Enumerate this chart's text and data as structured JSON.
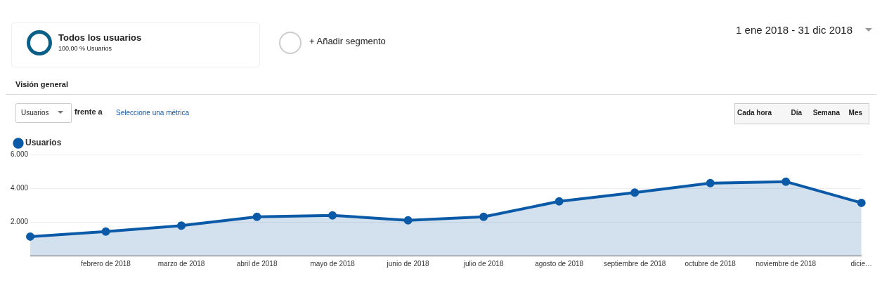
{
  "chart_data": {
    "type": "area",
    "categories": [
      null,
      "febrero de 2018",
      "marzo de 2018",
      "abril de 2018",
      "mayo de 2018",
      "junio de 2018",
      "julio de 2018",
      "agosto de 2018",
      "septiembre de 2018",
      "octubre de 2018",
      "noviembre de 2018",
      "dicie…"
    ],
    "series": [
      {
        "name": "Usuarios",
        "color": "#0b5aa8",
        "values": [
          1130,
          1430,
          1780,
          2300,
          2390,
          2090,
          2300,
          3220,
          3740,
          4300,
          4390,
          3130
        ]
      }
    ],
    "ylim": [
      0,
      6000
    ],
    "yticks": [
      {
        "value": 2000,
        "label": "2.000"
      },
      {
        "value": 4000,
        "label": "4.000"
      },
      {
        "value": 6000,
        "label": "6.000"
      }
    ],
    "grid": "y",
    "legend": "top left",
    "marker": "circle",
    "line_style": "solid",
    "annotations": [
      "Todos los usuarios",
      "100,00 % Usuarios",
      "+ Añadir segmento",
      "1 ene 2018 - 31 dic 2018",
      "Visión general",
      "Usuarios",
      "frente a",
      "Seleccione una métrica",
      "Cada hora",
      "Día",
      "Semana",
      "Mes"
    ]
  }
}
